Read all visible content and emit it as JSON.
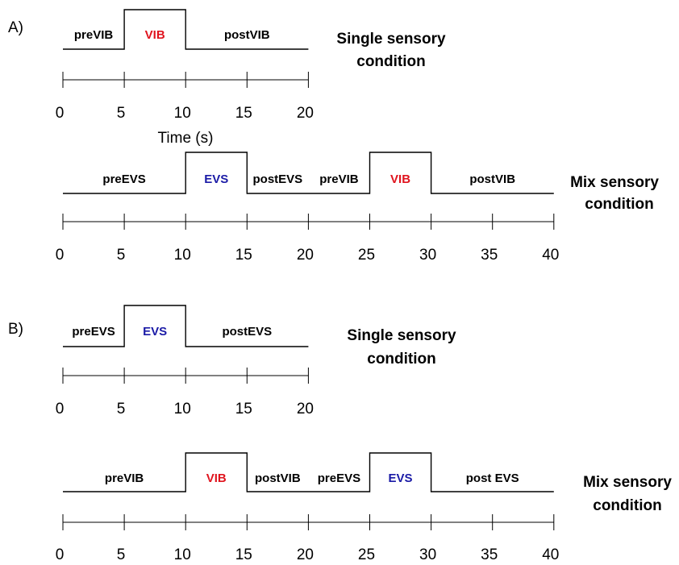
{
  "colors": {
    "VIB": "#e0141e",
    "EVS": "#1a1aa6",
    "default": "#000000"
  },
  "axis_title": "Time (s)",
  "panels": [
    {
      "label": "A)",
      "rows": [
        {
          "condition": [
            "Single sensory",
            "condition"
          ],
          "ticks": [
            0,
            5,
            10,
            15,
            20
          ],
          "segments": [
            {
              "label": "preVIB",
              "start": 0,
              "end": 5,
              "level": "low",
              "stim": ""
            },
            {
              "label": "VIB",
              "start": 5,
              "end": 10,
              "level": "high",
              "stim": "VIB"
            },
            {
              "label": "postVIB",
              "start": 10,
              "end": 20,
              "level": "low",
              "stim": ""
            }
          ]
        },
        {
          "condition": [
            "Mix sensory",
            "condition"
          ],
          "ticks": [
            0,
            5,
            10,
            15,
            20,
            25,
            30,
            35,
            40
          ],
          "segments": [
            {
              "label": "preEVS",
              "start": 0,
              "end": 10,
              "level": "low",
              "stim": ""
            },
            {
              "label": "EVS",
              "start": 10,
              "end": 15,
              "level": "high",
              "stim": "EVS"
            },
            {
              "label": "postEVS",
              "start": 15,
              "end": 20,
              "level": "low",
              "stim": ""
            },
            {
              "label": "preVIB",
              "start": 20,
              "end": 25,
              "level": "low",
              "stim": ""
            },
            {
              "label": "VIB",
              "start": 25,
              "end": 30,
              "level": "high",
              "stim": "VIB"
            },
            {
              "label": "postVIB",
              "start": 30,
              "end": 40,
              "level": "low",
              "stim": ""
            }
          ]
        }
      ]
    },
    {
      "label": "B)",
      "rows": [
        {
          "condition": [
            "Single sensory",
            "condition"
          ],
          "ticks": [
            0,
            5,
            10,
            15,
            20
          ],
          "segments": [
            {
              "label": "preEVS",
              "start": 0,
              "end": 5,
              "level": "low",
              "stim": ""
            },
            {
              "label": "EVS",
              "start": 5,
              "end": 10,
              "level": "high",
              "stim": "EVS"
            },
            {
              "label": "postEVS",
              "start": 10,
              "end": 20,
              "level": "low",
              "stim": ""
            }
          ]
        },
        {
          "condition": [
            "Mix sensory",
            "condition"
          ],
          "ticks": [
            0,
            5,
            10,
            15,
            20,
            25,
            30,
            35,
            40
          ],
          "segments": [
            {
              "label": "preVIB",
              "start": 0,
              "end": 10,
              "level": "low",
              "stim": ""
            },
            {
              "label": "VIB",
              "start": 10,
              "end": 15,
              "level": "high",
              "stim": "VIB"
            },
            {
              "label": "postVIB",
              "start": 15,
              "end": 20,
              "level": "low",
              "stim": ""
            },
            {
              "label": "preEVS",
              "start": 20,
              "end": 25,
              "level": "low",
              "stim": ""
            },
            {
              "label": "EVS",
              "start": 25,
              "end": 30,
              "level": "high",
              "stim": "EVS"
            },
            {
              "label": "post EVS",
              "start": 30,
              "end": 40,
              "level": "low",
              "stim": ""
            }
          ]
        }
      ]
    }
  ]
}
